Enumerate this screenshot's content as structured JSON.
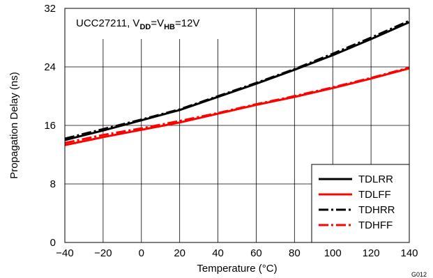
{
  "chart_data": {
    "type": "line",
    "title": {
      "prefix": "UCC27211, V",
      "sub1": "DD",
      "mid": "=V",
      "sub2": "HB",
      "suffix": "=12V"
    },
    "xlabel": "Temperature (°C)",
    "ylabel": "Propagation Delay (ns)",
    "xlim": [
      -40,
      140
    ],
    "ylim": [
      0,
      32
    ],
    "xticks": [
      -40,
      -20,
      0,
      20,
      40,
      60,
      80,
      100,
      120,
      140
    ],
    "yticks": [
      0,
      8,
      16,
      24,
      32
    ],
    "xtick_labels": [
      "−40",
      "−20",
      "0",
      "20",
      "40",
      "60",
      "80",
      "100",
      "120",
      "140"
    ],
    "ytick_labels": [
      "0",
      "8",
      "16",
      "24",
      "32"
    ],
    "grid": true,
    "legend_position": "bottom-right",
    "figure_id": "G012",
    "series": [
      {
        "name": "TDLRR",
        "color": "#000000",
        "style": "solid",
        "x": [
          -40,
          -20,
          0,
          20,
          40,
          60,
          80,
          100,
          120,
          140
        ],
        "y": [
          14.0,
          15.3,
          16.7,
          18.1,
          19.9,
          21.7,
          23.6,
          25.6,
          27.8,
          30.1
        ]
      },
      {
        "name": "TDLFF",
        "color": "#ff0000",
        "style": "solid",
        "x": [
          -40,
          -20,
          0,
          20,
          40,
          60,
          80,
          100,
          120,
          140
        ],
        "y": [
          13.3,
          14.4,
          15.4,
          16.4,
          17.6,
          18.8,
          19.9,
          21.1,
          22.4,
          23.8
        ]
      },
      {
        "name": "TDHRR",
        "color": "#000000",
        "style": "dashdot",
        "x": [
          -40,
          -20,
          0,
          20,
          40,
          60,
          80,
          100,
          120,
          140
        ],
        "y": [
          14.2,
          15.5,
          16.8,
          18.2,
          20.0,
          21.8,
          23.7,
          25.8,
          28.0,
          30.3
        ]
      },
      {
        "name": "TDHFF",
        "color": "#ff0000",
        "style": "dashdot",
        "x": [
          -40,
          -20,
          0,
          20,
          40,
          60,
          80,
          100,
          120,
          140
        ],
        "y": [
          13.6,
          14.7,
          15.6,
          16.6,
          17.7,
          18.9,
          20.0,
          21.2,
          22.5,
          23.9
        ]
      }
    ]
  }
}
